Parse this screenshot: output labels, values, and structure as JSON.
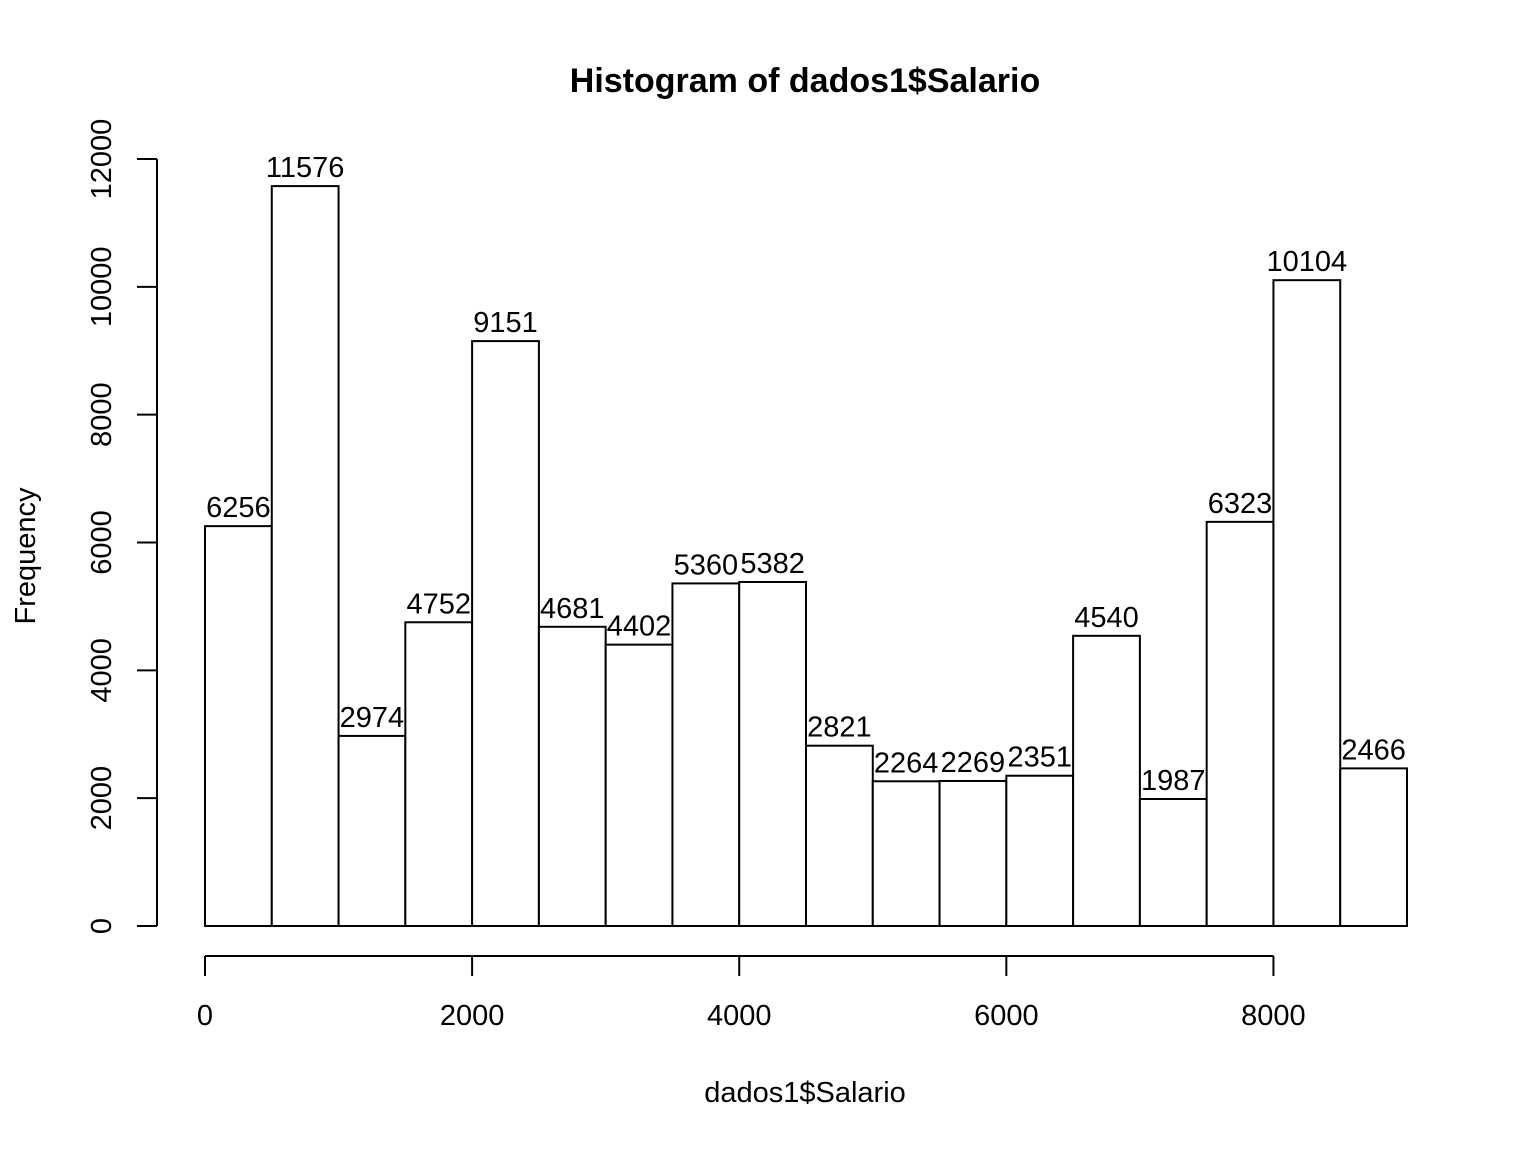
{
  "chart_data": {
    "type": "bar",
    "title": "Histogram of dados1$Salario",
    "xlabel": "dados1$Salario",
    "ylabel": "Frequency",
    "bin_width": 500,
    "bins": [
      {
        "start": 0,
        "end": 500,
        "count": 6256
      },
      {
        "start": 500,
        "end": 1000,
        "count": 11576
      },
      {
        "start": 1000,
        "end": 1500,
        "count": 2974
      },
      {
        "start": 1500,
        "end": 2000,
        "count": 4752
      },
      {
        "start": 2000,
        "end": 2500,
        "count": 9151
      },
      {
        "start": 2500,
        "end": 3000,
        "count": 4681
      },
      {
        "start": 3000,
        "end": 3500,
        "count": 4402
      },
      {
        "start": 3500,
        "end": 4000,
        "count": 5360
      },
      {
        "start": 4000,
        "end": 4500,
        "count": 5382
      },
      {
        "start": 4500,
        "end": 5000,
        "count": 2821
      },
      {
        "start": 5000,
        "end": 5500,
        "count": 2264
      },
      {
        "start": 5500,
        "end": 6000,
        "count": 2269
      },
      {
        "start": 6000,
        "end": 6500,
        "count": 2351
      },
      {
        "start": 6500,
        "end": 7000,
        "count": 4540
      },
      {
        "start": 7000,
        "end": 7500,
        "count": 1987
      },
      {
        "start": 7500,
        "end": 8000,
        "count": 6323
      },
      {
        "start": 8000,
        "end": 8500,
        "count": 10104
      },
      {
        "start": 8500,
        "end": 9000,
        "count": 2466
      }
    ],
    "xlim": [
      0,
      9000
    ],
    "ylim": [
      0,
      12000
    ],
    "x_ticks": [
      0,
      2000,
      4000,
      6000,
      8000
    ],
    "y_ticks": [
      0,
      2000,
      4000,
      6000,
      8000,
      10000,
      12000
    ],
    "x_tick_labels": [
      "0",
      "2000",
      "4000",
      "6000",
      "8000"
    ],
    "y_tick_labels": [
      "0",
      "2000",
      "4000",
      "6000",
      "8000",
      "10000",
      "12000"
    ],
    "grid": false,
    "legend": "none",
    "bar_fill": "#ffffff",
    "bar_stroke": "#000000"
  }
}
